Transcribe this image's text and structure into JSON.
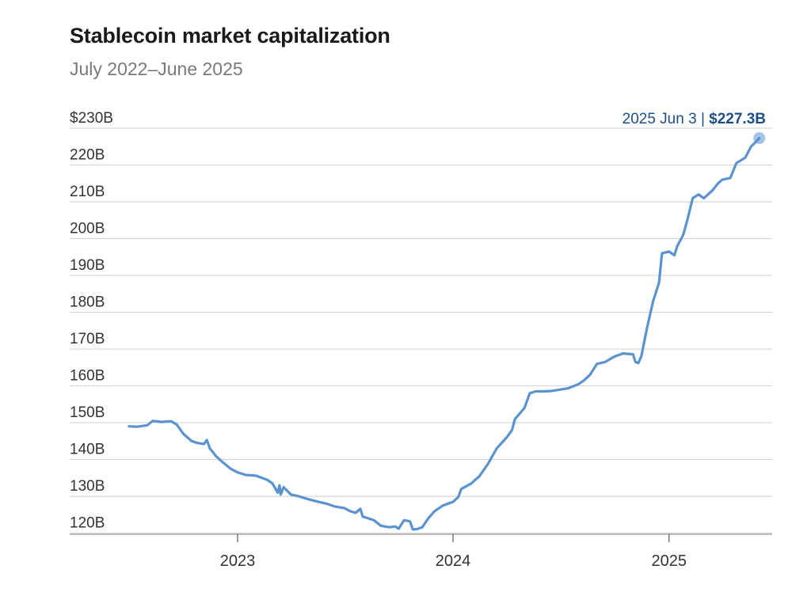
{
  "chart_data": {
    "type": "line",
    "title": "Stablecoin market capitalization",
    "subtitle": "July 2022–June 2025",
    "xlabel": "",
    "ylabel": "",
    "ylim": [
      119,
      233
    ],
    "y_ticks": [
      {
        "value": 230,
        "label": "$230B"
      },
      {
        "value": 220,
        "label": "220B"
      },
      {
        "value": 210,
        "label": "210B"
      },
      {
        "value": 200,
        "label": "200B"
      },
      {
        "value": 190,
        "label": "190B"
      },
      {
        "value": 180,
        "label": "180B"
      },
      {
        "value": 170,
        "label": "170B"
      },
      {
        "value": 160,
        "label": "160B"
      },
      {
        "value": 150,
        "label": "150B"
      },
      {
        "value": 140,
        "label": "140B"
      },
      {
        "value": 130,
        "label": "130B"
      },
      {
        "value": 120,
        "label": "120B"
      }
    ],
    "x_ticks": [
      {
        "value": "2023-01-01",
        "label": "2023"
      },
      {
        "value": "2024-01-01",
        "label": "2024"
      },
      {
        "value": "2025-01-01",
        "label": "2025"
      }
    ],
    "grid": true,
    "line_color": "#5b93cf",
    "annotation": {
      "date_label": "2025 Jun 3",
      "separator": "|",
      "value_label": "$227.3B",
      "x": "2025-06-03",
      "y": 227.3,
      "color": "#1f4e87"
    },
    "series": [
      {
        "points": [
          [
            "2022-07-01",
            149
          ],
          [
            "2022-07-15",
            148.9
          ],
          [
            "2022-08-01",
            149.3
          ],
          [
            "2022-08-10",
            150.5
          ],
          [
            "2022-08-25",
            150.2
          ],
          [
            "2022-09-10",
            150.4
          ],
          [
            "2022-09-20",
            149.5
          ],
          [
            "2022-10-01",
            147
          ],
          [
            "2022-10-15",
            145
          ],
          [
            "2022-10-25",
            144.5
          ],
          [
            "2022-11-05",
            144.2
          ],
          [
            "2022-11-10",
            145.3
          ],
          [
            "2022-11-15",
            143
          ],
          [
            "2022-11-25",
            141
          ],
          [
            "2022-12-05",
            139.5
          ],
          [
            "2022-12-20",
            137.5
          ],
          [
            "2023-01-01",
            136.5
          ],
          [
            "2023-01-15",
            135.8
          ],
          [
            "2023-02-01",
            135.6
          ],
          [
            "2023-02-20",
            134.5
          ],
          [
            "2023-03-01",
            133.5
          ],
          [
            "2023-03-10",
            131
          ],
          [
            "2023-03-13",
            133
          ],
          [
            "2023-03-15",
            130.5
          ],
          [
            "2023-03-20",
            132.5
          ],
          [
            "2023-04-01",
            130.5
          ],
          [
            "2023-04-15",
            130
          ],
          [
            "2023-05-01",
            129.2
          ],
          [
            "2023-05-15",
            128.6
          ],
          [
            "2023-06-01",
            128
          ],
          [
            "2023-06-15",
            127.2
          ],
          [
            "2023-07-01",
            126.8
          ],
          [
            "2023-07-10",
            126
          ],
          [
            "2023-07-20",
            125.5
          ],
          [
            "2023-07-28",
            126.6
          ],
          [
            "2023-08-01",
            124.5
          ],
          [
            "2023-08-20",
            123.5
          ],
          [
            "2023-09-01",
            122
          ],
          [
            "2023-09-15",
            121.6
          ],
          [
            "2023-09-25",
            121.8
          ],
          [
            "2023-10-01",
            121.2
          ],
          [
            "2023-10-10",
            123.5
          ],
          [
            "2023-10-20",
            123.2
          ],
          [
            "2023-10-25",
            121
          ],
          [
            "2023-11-01",
            121.1
          ],
          [
            "2023-11-10",
            121.6
          ],
          [
            "2023-11-20",
            124
          ],
          [
            "2023-12-01",
            126
          ],
          [
            "2023-12-15",
            127.5
          ],
          [
            "2024-01-01",
            128.5
          ],
          [
            "2024-01-10",
            129.8
          ],
          [
            "2024-01-15",
            132
          ],
          [
            "2024-02-01",
            133.5
          ],
          [
            "2024-02-15",
            135.5
          ],
          [
            "2024-03-01",
            139
          ],
          [
            "2024-03-15",
            143
          ],
          [
            "2024-04-01",
            146
          ],
          [
            "2024-04-10",
            148
          ],
          [
            "2024-04-15",
            151
          ],
          [
            "2024-05-01",
            154
          ],
          [
            "2024-05-10",
            158
          ],
          [
            "2024-05-20",
            158.5
          ],
          [
            "2024-06-01",
            158.5
          ],
          [
            "2024-06-15",
            158.6
          ],
          [
            "2024-07-01",
            159
          ],
          [
            "2024-07-15",
            159.4
          ],
          [
            "2024-08-01",
            160.5
          ],
          [
            "2024-08-10",
            161.5
          ],
          [
            "2024-08-20",
            163
          ],
          [
            "2024-09-01",
            166
          ],
          [
            "2024-09-15",
            166.5
          ],
          [
            "2024-10-01",
            168
          ],
          [
            "2024-10-15",
            168.8
          ],
          [
            "2024-11-01",
            168.6
          ],
          [
            "2024-11-05",
            166.5
          ],
          [
            "2024-11-10",
            166.2
          ],
          [
            "2024-11-15",
            168
          ],
          [
            "2024-11-25",
            176
          ],
          [
            "2024-12-05",
            183
          ],
          [
            "2024-12-15",
            188
          ],
          [
            "2024-12-20",
            196
          ],
          [
            "2025-01-01",
            196.5
          ],
          [
            "2025-01-10",
            195.5
          ],
          [
            "2025-01-15",
            198
          ],
          [
            "2025-01-25",
            201
          ],
          [
            "2025-02-01",
            205
          ],
          [
            "2025-02-10",
            211
          ],
          [
            "2025-02-20",
            212
          ],
          [
            "2025-03-01",
            211
          ],
          [
            "2025-03-15",
            213
          ],
          [
            "2025-03-25",
            215
          ],
          [
            "2025-04-01",
            216
          ],
          [
            "2025-04-15",
            216.5
          ],
          [
            "2025-04-25",
            220.5
          ],
          [
            "2025-05-10",
            222
          ],
          [
            "2025-05-20",
            225
          ],
          [
            "2025-06-03",
            227.3
          ]
        ]
      }
    ]
  }
}
